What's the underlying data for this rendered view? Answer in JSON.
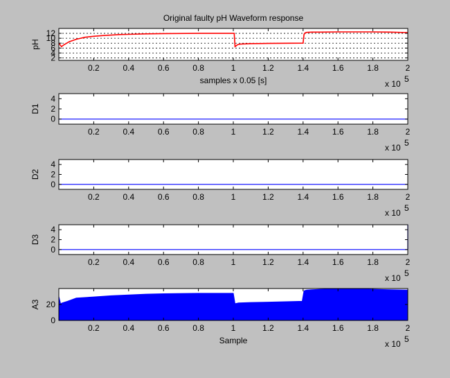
{
  "figure": {
    "background": "#c0c0c0"
  },
  "chart_data": [
    {
      "type": "line",
      "title": "Original faulty pH Waveform response",
      "xlabel": "samples x 0.05 [s]",
      "ylabel": "pH",
      "x_exponent_base": "x 10",
      "x_exponent_power": "5",
      "xlim": [
        0,
        200000
      ],
      "ylim": [
        1,
        14
      ],
      "xticks": [
        20000,
        40000,
        60000,
        80000,
        100000,
        120000,
        140000,
        160000,
        180000,
        200000
      ],
      "xtick_labels": [
        "0.2",
        "0.4",
        "0.6",
        "0.8",
        "1",
        "1.2",
        "1.4",
        "1.6",
        "1.8",
        "2"
      ],
      "yticks": [
        2,
        4,
        6,
        8,
        10,
        12
      ],
      "ytick_labels": [
        "2",
        "4",
        "6",
        "8",
        "10",
        "12"
      ],
      "grid": "y dotted",
      "series": [
        {
          "color": "#ff0000",
          "x": [
            0,
            1500,
            3000,
            6000,
            10000,
            15000,
            20000,
            25000,
            30000,
            35000,
            40000,
            50000,
            60000,
            80000,
            100500,
            101000,
            102500,
            104000,
            110000,
            120000,
            140000,
            140500,
            141000,
            142000,
            145000,
            150000,
            160000,
            170000,
            180000,
            190000,
            200000
          ],
          "y": [
            8.0,
            6.6,
            7.4,
            8.6,
            9.6,
            10.4,
            10.8,
            11.1,
            11.3,
            11.5,
            11.6,
            11.8,
            11.9,
            12.0,
            12.0,
            6.6,
            7.4,
            7.6,
            7.8,
            7.9,
            8.0,
            11.5,
            12.1,
            12.4,
            12.5,
            12.5,
            12.6,
            12.6,
            12.6,
            12.5,
            12.3
          ]
        }
      ]
    },
    {
      "type": "line",
      "ylabel": "D1",
      "x_exponent_base": "x 10",
      "x_exponent_power": "5",
      "xlim": [
        0,
        200000
      ],
      "ylim": [
        -1,
        5
      ],
      "xticks": [
        20000,
        40000,
        60000,
        80000,
        100000,
        120000,
        140000,
        160000,
        180000,
        200000
      ],
      "xtick_labels": [
        "0.2",
        "0.4",
        "0.6",
        "0.8",
        "1",
        "1.2",
        "1.4",
        "1.6",
        "1.8",
        "2"
      ],
      "yticks": [
        0,
        2,
        4
      ],
      "ytick_labels": [
        "0",
        "2",
        "4"
      ],
      "series": [
        {
          "color": "#0000ff",
          "x": [
            0,
            200000
          ],
          "y": [
            0,
            0
          ]
        }
      ]
    },
    {
      "type": "line",
      "ylabel": "D2",
      "x_exponent_base": "x 10",
      "x_exponent_power": "5",
      "xlim": [
        0,
        200000
      ],
      "ylim": [
        -1,
        5
      ],
      "xticks": [
        20000,
        40000,
        60000,
        80000,
        100000,
        120000,
        140000,
        160000,
        180000,
        200000
      ],
      "xtick_labels": [
        "0.2",
        "0.4",
        "0.6",
        "0.8",
        "1",
        "1.2",
        "1.4",
        "1.6",
        "1.8",
        "2"
      ],
      "yticks": [
        0,
        2,
        4
      ],
      "ytick_labels": [
        "0",
        "2",
        "4"
      ],
      "series": [
        {
          "color": "#0000ff",
          "x": [
            0,
            200000
          ],
          "y": [
            0,
            0
          ]
        }
      ]
    },
    {
      "type": "line",
      "ylabel": "D3",
      "x_exponent_base": "x 10",
      "x_exponent_power": "5",
      "xlim": [
        0,
        200000
      ],
      "ylim": [
        -1,
        5
      ],
      "xticks": [
        20000,
        40000,
        60000,
        80000,
        100000,
        120000,
        140000,
        160000,
        180000,
        200000
      ],
      "xtick_labels": [
        "0.2",
        "0.4",
        "0.6",
        "0.8",
        "1",
        "1.2",
        "1.4",
        "1.6",
        "1.8",
        "2"
      ],
      "yticks": [
        0,
        2,
        4
      ],
      "ytick_labels": [
        "0",
        "2",
        "4"
      ],
      "series": [
        {
          "color": "#0000ff",
          "x": [
            0,
            200000,
            200000,
            200000
          ],
          "y": [
            0,
            0,
            5,
            0
          ]
        }
      ]
    },
    {
      "type": "area",
      "xlabel": "Sample",
      "ylabel": "A3",
      "x_exponent_base": "x 10",
      "x_exponent_power": "5",
      "xlim": [
        0,
        200000
      ],
      "ylim": [
        0,
        40
      ],
      "xticks": [
        20000,
        40000,
        60000,
        80000,
        100000,
        120000,
        140000,
        160000,
        180000,
        200000
      ],
      "xtick_labels": [
        "0.2",
        "0.4",
        "0.6",
        "0.8",
        "1",
        "1.2",
        "1.4",
        "1.6",
        "1.8",
        "2"
      ],
      "yticks": [
        0,
        20
      ],
      "ytick_labels": [
        "0",
        "20"
      ],
      "series": [
        {
          "color": "#0000ff",
          "x": [
            0,
            1000,
            2000,
            5000,
            10000,
            20000,
            30000,
            40000,
            50000,
            60000,
            80000,
            100000,
            101000,
            103000,
            110000,
            120000,
            130000,
            139500,
            140500,
            142000,
            145000,
            150000,
            160000,
            170000,
            180000,
            190000,
            200000
          ],
          "y": [
            30,
            21,
            22,
            24,
            28,
            29.5,
            31,
            32,
            33,
            33.5,
            34,
            34,
            21,
            22,
            22.5,
            23,
            23.5,
            24,
            37,
            38,
            38.5,
            39,
            39.5,
            39.5,
            39,
            38.5,
            38
          ]
        }
      ]
    }
  ]
}
